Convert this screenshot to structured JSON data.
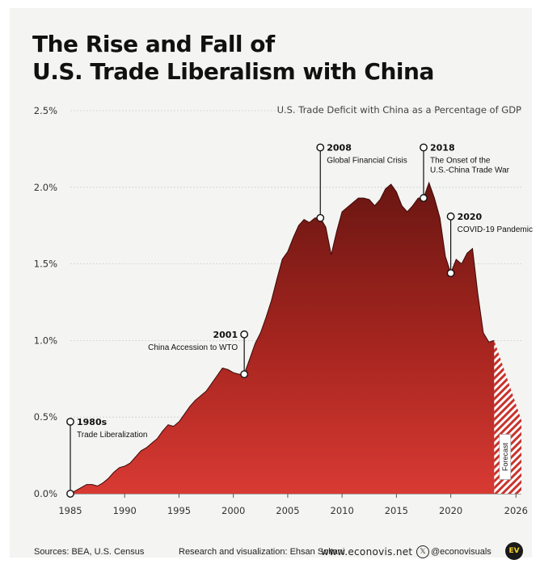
{
  "title_line1": "The Rise and Fall of",
  "title_line2": "U.S. Trade Liberalism with China",
  "chart_data": {
    "type": "area",
    "title": "The Rise and Fall of U.S. Trade Liberalism with China",
    "subtitle": "U.S. Trade Deficit with China as a Percentage of GDP",
    "xlabel": "",
    "ylabel": "",
    "xlim": [
      1985,
      2026.5
    ],
    "ylim": [
      0,
      2.5
    ],
    "x_ticks": [
      1985,
      1990,
      1995,
      2000,
      2005,
      2010,
      2015,
      2020,
      2026
    ],
    "y_ticks": [
      0,
      0.5,
      1.0,
      1.5,
      2.0,
      2.5
    ],
    "y_tick_labels": [
      "0.0%",
      "0.5%",
      "1.0%",
      "1.5%",
      "2.0%",
      "2.5%"
    ],
    "grid": true,
    "series": [
      {
        "x": [
          1985,
          1985.5,
          1986,
          1986.5,
          1987,
          1987.5,
          1988,
          1988.5,
          1989,
          1989.5,
          1990,
          1990.5,
          1991,
          1991.5,
          1992,
          1992.5,
          1993,
          1993.5,
          1994,
          1994.5,
          1995,
          1995.5,
          1996,
          1996.5,
          1997,
          1997.5,
          1998,
          1998.5,
          1999,
          1999.5,
          2000,
          2000.5,
          2001,
          2001.5,
          2002,
          2002.5,
          2003,
          2003.5,
          2004,
          2004.5,
          2005,
          2005.5,
          2006,
          2006.5,
          2007,
          2007.5,
          2008,
          2008.5,
          2009,
          2009.5,
          2010,
          2010.5,
          2011,
          2011.5,
          2012,
          2012.5,
          2013,
          2013.5,
          2014,
          2014.5,
          2015,
          2015.5,
          2016,
          2016.5,
          2017,
          2017.5,
          2018,
          2018.5,
          2019,
          2019.5,
          2020,
          2020.5,
          2021,
          2021.5,
          2022,
          2022.5,
          2023,
          2023.5,
          2024
        ],
        "values": [
          0.0,
          0.02,
          0.04,
          0.06,
          0.06,
          0.05,
          0.07,
          0.1,
          0.14,
          0.17,
          0.18,
          0.2,
          0.24,
          0.28,
          0.3,
          0.33,
          0.36,
          0.41,
          0.45,
          0.44,
          0.47,
          0.52,
          0.57,
          0.61,
          0.64,
          0.67,
          0.72,
          0.77,
          0.82,
          0.81,
          0.79,
          0.78,
          0.78,
          0.88,
          0.98,
          1.05,
          1.15,
          1.26,
          1.4,
          1.53,
          1.58,
          1.67,
          1.75,
          1.79,
          1.77,
          1.8,
          1.8,
          1.74,
          1.56,
          1.71,
          1.84,
          1.87,
          1.9,
          1.93,
          1.93,
          1.92,
          1.88,
          1.92,
          1.99,
          2.02,
          1.97,
          1.88,
          1.84,
          1.88,
          1.93,
          1.93,
          2.03,
          1.93,
          1.8,
          1.55,
          1.44,
          1.53,
          1.5,
          1.57,
          1.6,
          1.3,
          1.05,
          0.99,
          1.0
        ]
      },
      {
        "name": "Forecast",
        "x": [
          2024,
          2026.5
        ],
        "values": [
          1.0,
          0.48
        ]
      }
    ],
    "annotations": [
      {
        "x": 1985,
        "y": 0.0,
        "year": "1980s",
        "text": "Trade Liberalization",
        "label_y": 0.47
      },
      {
        "x": 2001,
        "y": 0.78,
        "year": "2001",
        "text": "China Accession to WTO",
        "label_y": 1.04
      },
      {
        "x": 2008,
        "y": 1.8,
        "year": "2008",
        "text": "Global Financial Crisis",
        "label_y": 2.26
      },
      {
        "x": 2017.5,
        "y": 1.93,
        "year": "2018",
        "text1": "The Onset of the",
        "text2": "U.S.-China Trade War",
        "label_y": 2.26
      },
      {
        "x": 2020,
        "y": 1.44,
        "year": "2020",
        "text": "COVID-19 Pandemic",
        "label_y": 1.81
      }
    ]
  },
  "footer": {
    "sources": "Sources: BEA, U.S. Census",
    "credit": "Research and visualization: Ehsan Soltani",
    "website": "www.econovis.net",
    "social": "@econovisuals",
    "logo_text": "EV"
  }
}
